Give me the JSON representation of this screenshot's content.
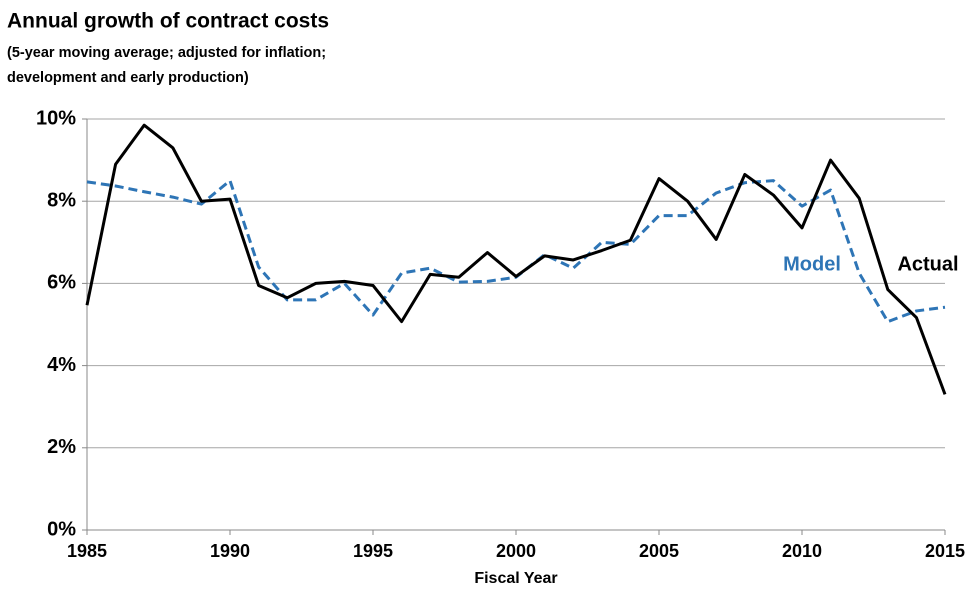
{
  "chart_data": {
    "type": "line",
    "title": "Annual growth of contract costs",
    "subtitle": [
      "(5-year moving average; adjusted for inflation;",
      "development and early production)"
    ],
    "x_label": "Fiscal Year",
    "x": [
      1985,
      1986,
      1987,
      1988,
      1989,
      1990,
      1991,
      1992,
      1993,
      1994,
      1995,
      1996,
      1997,
      1998,
      1999,
      2000,
      2001,
      2002,
      2003,
      2004,
      2005,
      2006,
      2007,
      2008,
      2009,
      2010,
      2011,
      2012,
      2013,
      2014,
      2015
    ],
    "series": [
      {
        "name": "Model",
        "color": "#2e75b6",
        "dashed": true,
        "values": [
          8.47,
          8.37,
          8.23,
          8.1,
          7.93,
          8.5,
          6.4,
          5.6,
          5.6,
          6.0,
          5.23,
          6.25,
          6.37,
          6.03,
          6.05,
          6.15,
          6.7,
          6.37,
          7.0,
          6.95,
          7.65,
          7.65,
          8.2,
          8.45,
          8.5,
          7.88,
          8.27,
          6.25,
          5.07,
          5.33,
          5.42
        ]
      },
      {
        "name": "Actual",
        "color": "#000000",
        "dashed": false,
        "values": [
          5.47,
          8.9,
          9.85,
          9.3,
          8.0,
          8.05,
          5.95,
          5.65,
          6.0,
          6.05,
          5.95,
          5.07,
          6.22,
          6.15,
          6.75,
          6.17,
          6.67,
          6.57,
          6.8,
          7.05,
          8.55,
          8.0,
          7.07,
          8.65,
          8.15,
          7.35,
          9.0,
          8.07,
          5.85,
          5.17,
          3.3
        ]
      }
    ],
    "xlim": [
      1985,
      2015
    ],
    "xticks": [
      1985,
      1990,
      1995,
      2000,
      2005,
      2010,
      2015
    ],
    "ylim": [
      0,
      10
    ],
    "yticks": [
      {
        "value": 0,
        "label": "0%"
      },
      {
        "value": 2,
        "label": "2%"
      },
      {
        "value": 4,
        "label": "4%"
      },
      {
        "value": 6,
        "label": "6%"
      },
      {
        "value": 8,
        "label": "8%"
      },
      {
        "value": 10,
        "label": "10%"
      }
    ],
    "grid": true
  }
}
